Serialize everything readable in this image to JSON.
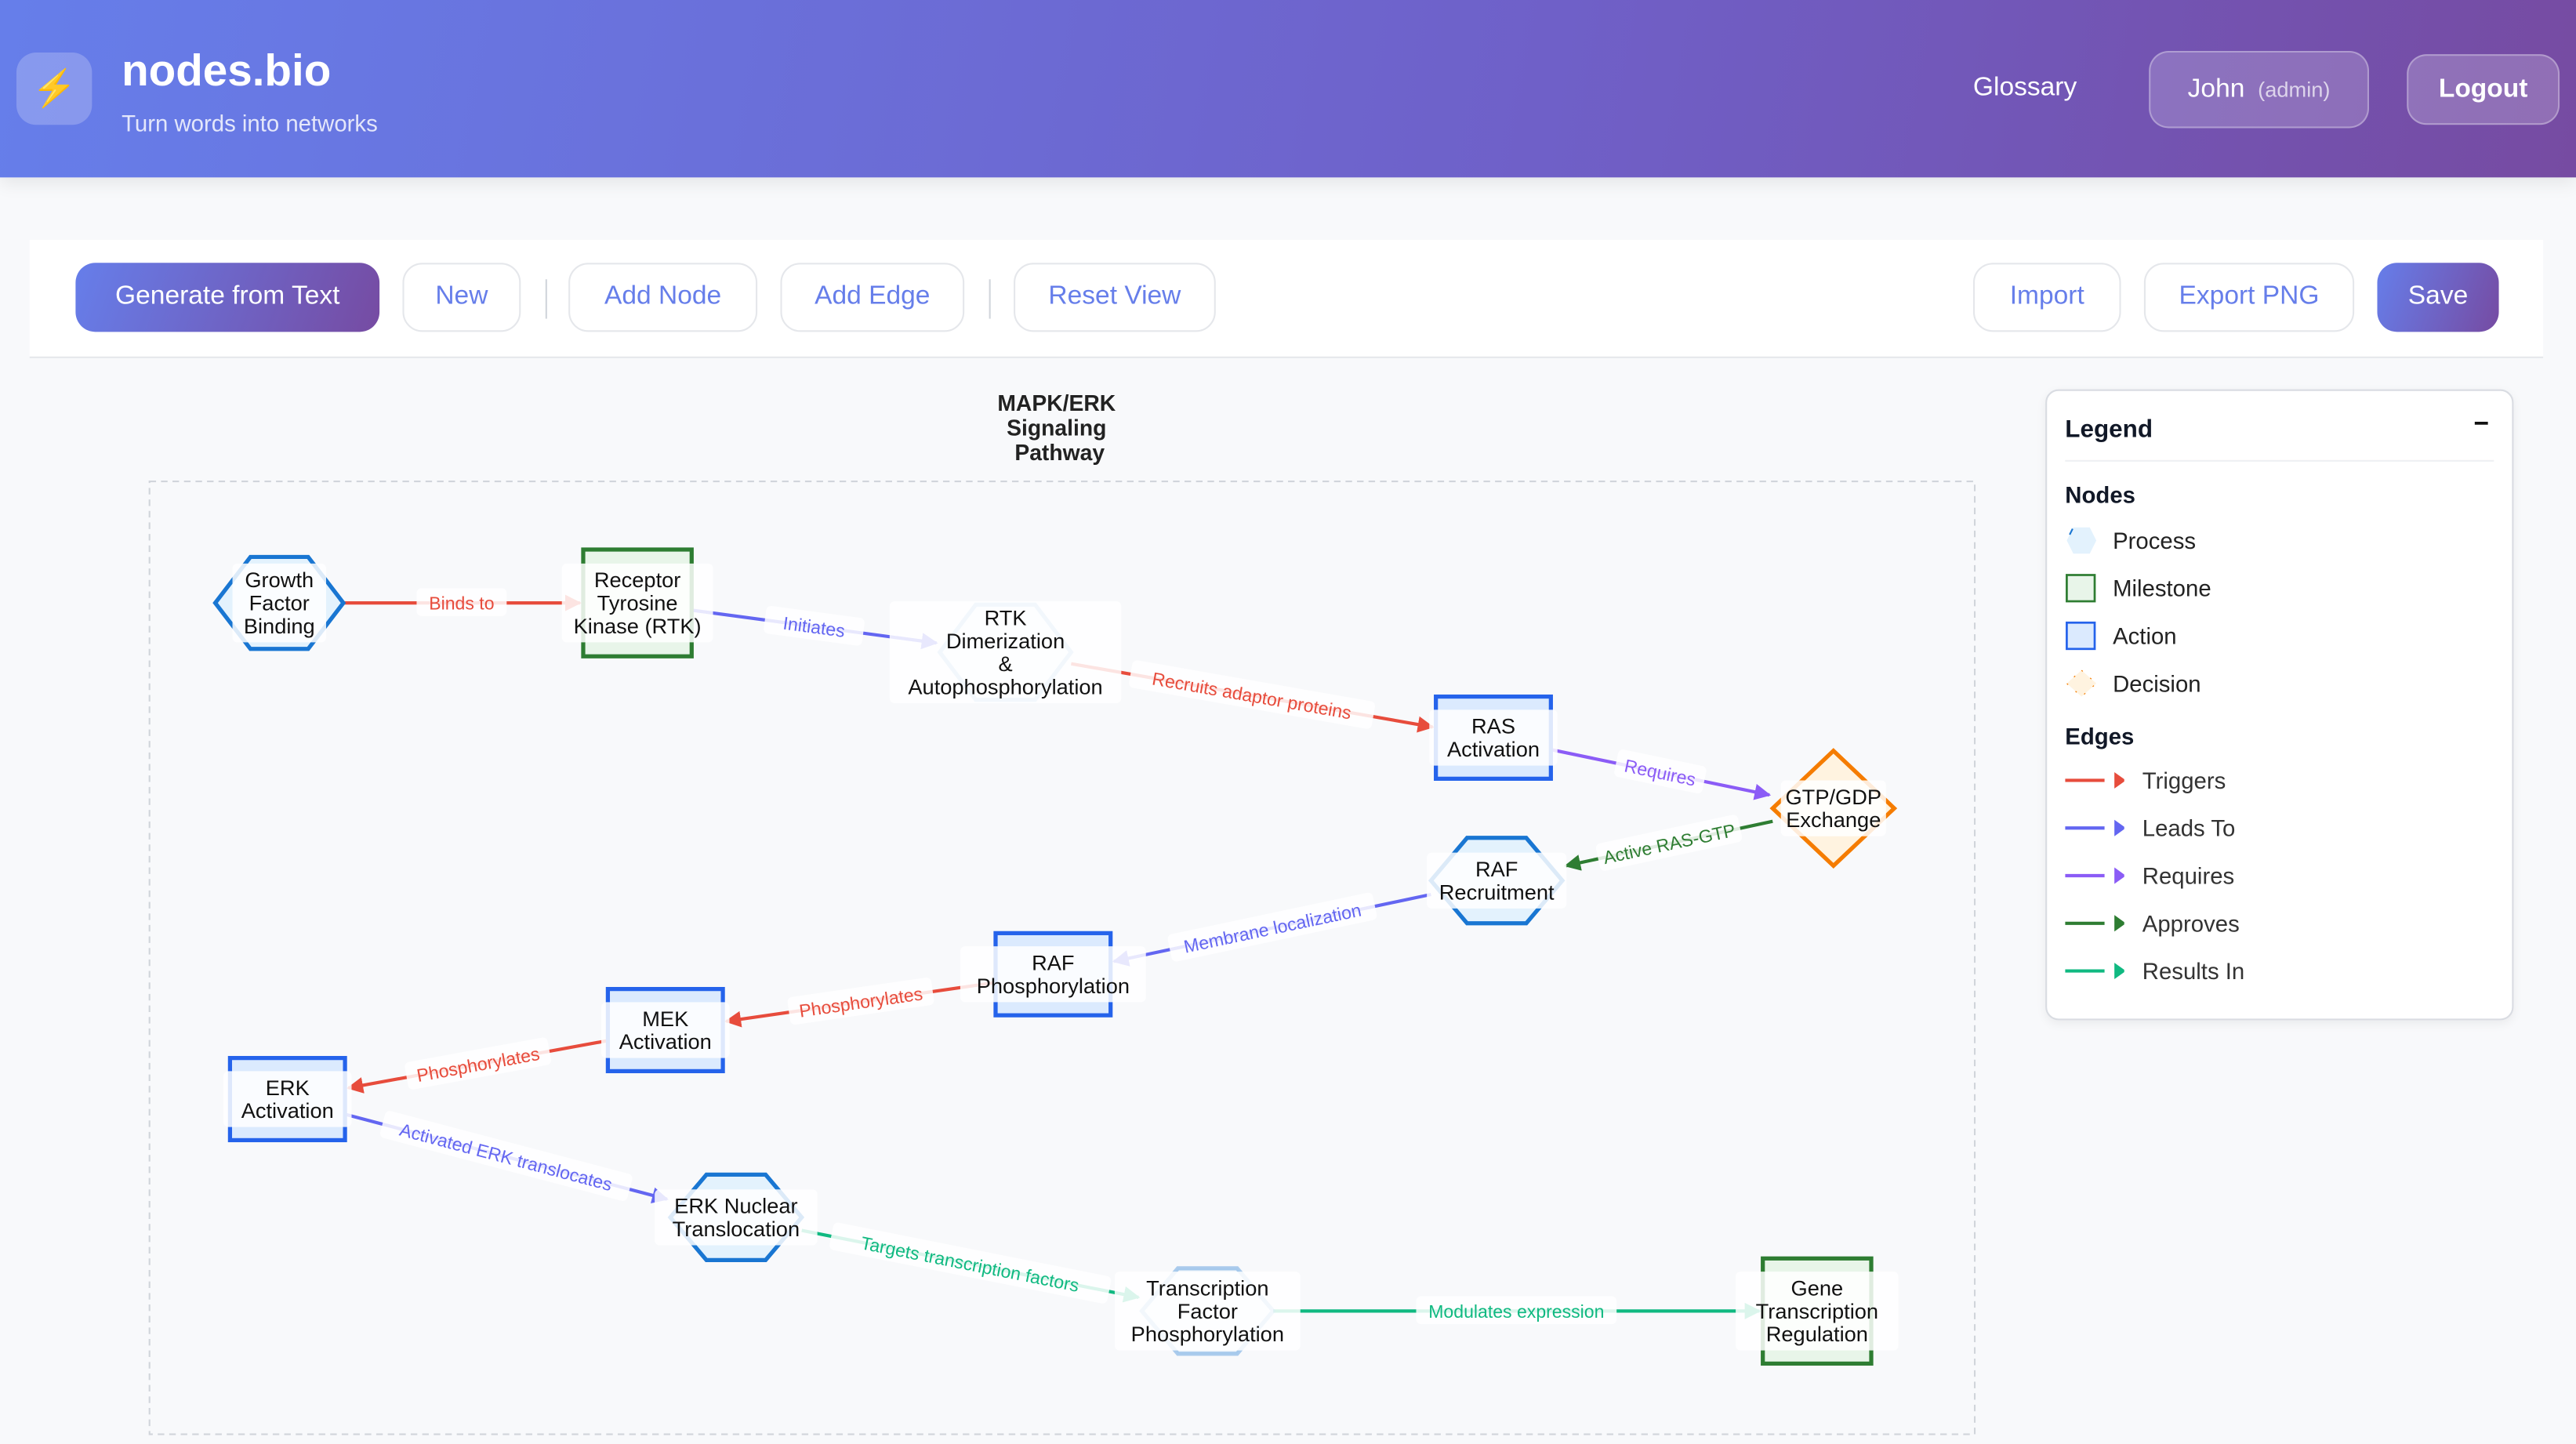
{
  "header": {
    "logo_icon": "lightning-bolt-icon",
    "title": "nodes.bio",
    "subtitle": "Turn words into networks",
    "glossary": "Glossary",
    "user_name": "John",
    "user_role": "(admin)",
    "logout": "Logout"
  },
  "toolbar": {
    "generate": "Generate from Text",
    "new": "New",
    "add_node": "Add Node",
    "add_edge": "Add Edge",
    "reset_view": "Reset View",
    "import": "Import",
    "export_png": "Export PNG",
    "save": "Save"
  },
  "diagram": {
    "title": [
      "MAPK/ERK",
      "Signaling",
      "Pathway"
    ],
    "nodes": [
      {
        "label": [
          "Growth",
          "Factor",
          "Binding"
        ],
        "type": "process"
      },
      {
        "label": [
          "Receptor",
          "Tyrosine",
          "Kinase (RTK)"
        ],
        "type": "milestone"
      },
      {
        "label": [
          "RTK",
          "Dimerization",
          "&",
          "Autophosphorylation"
        ],
        "type": "process"
      },
      {
        "label": [
          "RAS",
          "Activation"
        ],
        "type": "action"
      },
      {
        "label": [
          "GTP/GDP",
          "Exchange"
        ],
        "type": "decision"
      },
      {
        "label": [
          "RAF",
          "Recruitment"
        ],
        "type": "process"
      },
      {
        "label": [
          "RAF",
          "Phosphorylation"
        ],
        "type": "action"
      },
      {
        "label": [
          "MEK",
          "Activation"
        ],
        "type": "action"
      },
      {
        "label": [
          "ERK",
          "Activation"
        ],
        "type": "action"
      },
      {
        "label": [
          "ERK Nuclear",
          "Translocation"
        ],
        "type": "process"
      },
      {
        "label": [
          "Transcription",
          "Factor",
          "Phosphorylation"
        ],
        "type": "process"
      },
      {
        "label": [
          "Gene",
          "Transcription",
          "Regulation"
        ],
        "type": "milestone"
      }
    ],
    "edges": [
      {
        "from": 0,
        "to": 1,
        "label": "Binds to",
        "type": "triggers"
      },
      {
        "from": 1,
        "to": 2,
        "label": "Initiates",
        "type": "leads_to"
      },
      {
        "from": 2,
        "to": 3,
        "label": "Recruits adaptor proteins",
        "type": "triggers"
      },
      {
        "from": 3,
        "to": 4,
        "label": "Requires",
        "type": "requires"
      },
      {
        "from": 4,
        "to": 5,
        "label": "Active RAS-GTP",
        "type": "approves"
      },
      {
        "from": 5,
        "to": 6,
        "label": "Membrane localization",
        "type": "leads_to"
      },
      {
        "from": 6,
        "to": 7,
        "label": "Phosphorylates",
        "type": "triggers"
      },
      {
        "from": 7,
        "to": 8,
        "label": "Phosphorylates",
        "type": "triggers"
      },
      {
        "from": 8,
        "to": 9,
        "label": "Activated ERK translocates",
        "type": "leads_to"
      },
      {
        "from": 9,
        "to": 10,
        "label": "Targets transcription factors",
        "type": "results_in"
      },
      {
        "from": 10,
        "to": 11,
        "label": "Modulates expression",
        "type": "results_in"
      }
    ]
  },
  "colors": {
    "process_stroke": "#1976d2",
    "process_fill": "#e3f2fd",
    "milestone_stroke": "#2e7d32",
    "milestone_fill": "#e8f5e9",
    "action_stroke": "#2563eb",
    "action_fill": "#dbeafe",
    "decision_stroke": "#f57c00",
    "decision_fill": "#fff3e0",
    "triggers": "#e74c3c",
    "leads_to": "#6366f1",
    "requires": "#8b5cf6",
    "approves": "#2e7d32",
    "results_in": "#10b981"
  },
  "legend": {
    "title": "Legend",
    "collapse_icon": "minus-icon",
    "nodes_heading": "Nodes",
    "node_types": [
      {
        "key": "process",
        "label": "Process"
      },
      {
        "key": "milestone",
        "label": "Milestone"
      },
      {
        "key": "action",
        "label": "Action"
      },
      {
        "key": "decision",
        "label": "Decision"
      }
    ],
    "edges_heading": "Edges",
    "edge_types": [
      {
        "key": "triggers",
        "label": "Triggers"
      },
      {
        "key": "leads_to",
        "label": "Leads To"
      },
      {
        "key": "requires",
        "label": "Requires"
      },
      {
        "key": "approves",
        "label": "Approves"
      },
      {
        "key": "results_in",
        "label": "Results In"
      }
    ]
  }
}
